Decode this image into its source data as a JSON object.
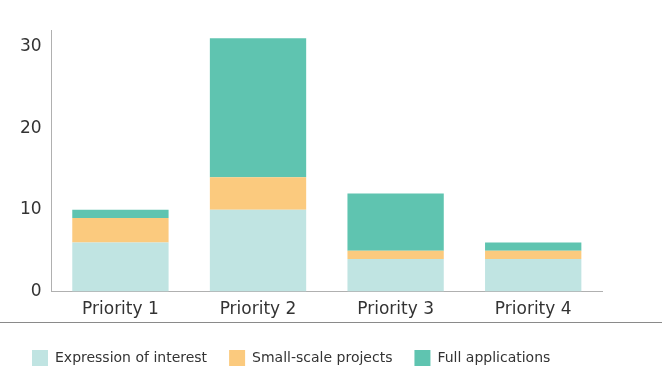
{
  "chart_data": {
    "type": "bar",
    "stacked": true,
    "grid": false,
    "legend": "bottom",
    "categories": [
      "Priority 1",
      "Priority 2",
      "Priority 3",
      "Priority 4"
    ],
    "series": [
      {
        "name": "Expression of interest",
        "color": "#c0e4e2",
        "values": [
          6,
          10,
          4,
          4
        ]
      },
      {
        "name": "Small-scale projects",
        "color": "#fbca7e",
        "values": [
          3,
          4,
          1,
          1
        ]
      },
      {
        "name": "Full applications",
        "color": "#5fc4b0",
        "values": [
          1,
          17,
          7,
          1
        ]
      }
    ],
    "ylim": [
      0,
      32
    ],
    "yticks": [
      0,
      10,
      20,
      30
    ]
  }
}
